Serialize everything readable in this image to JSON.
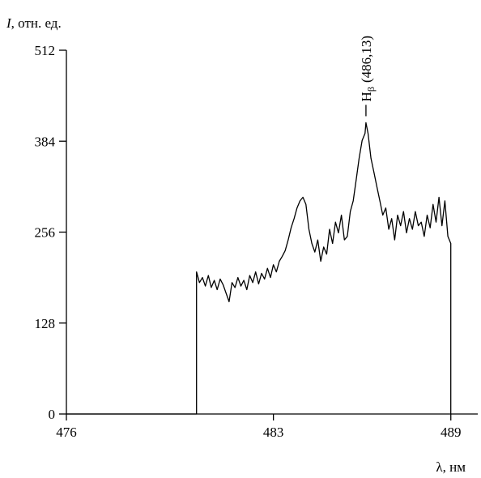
{
  "chart_data": {
    "type": "line",
    "ylabel_symbol": "I",
    "ylabel_unit": ", отн. ед.",
    "xlabel": "λ, нм",
    "annotation": {
      "symbol": "H",
      "subscript": "β",
      "value": 486.13,
      "label": "(486,13)"
    },
    "xlim": [
      476,
      489.5
    ],
    "xticks": [
      476,
      483,
      489
    ],
    "ylim": [
      0,
      512
    ],
    "yticks": [
      0,
      128,
      256,
      384,
      512
    ],
    "color": "#000000",
    "x": [
      476,
      480.4,
      480.4,
      480.5,
      480.6,
      480.7,
      480.8,
      480.9,
      481.0,
      481.1,
      481.2,
      481.3,
      481.4,
      481.5,
      481.6,
      481.7,
      481.8,
      481.9,
      482.0,
      482.1,
      482.2,
      482.3,
      482.4,
      482.5,
      482.6,
      482.7,
      482.8,
      482.9,
      483.0,
      483.1,
      483.2,
      483.3,
      483.4,
      483.5,
      483.6,
      483.7,
      483.8,
      483.9,
      484.0,
      484.1,
      484.2,
      484.3,
      484.4,
      484.5,
      484.6,
      484.7,
      484.8,
      484.9,
      485.0,
      485.1,
      485.2,
      485.3,
      485.4,
      485.5,
      485.6,
      485.7,
      485.8,
      485.9,
      486.0,
      486.1,
      486.13,
      486.2,
      486.3,
      486.4,
      486.5,
      486.6,
      486.7,
      486.8,
      486.9,
      487.0,
      487.1,
      487.2,
      487.3,
      487.4,
      487.5,
      487.6,
      487.7,
      487.8,
      487.9,
      488.0,
      488.1,
      488.2,
      488.3,
      488.4,
      488.5,
      488.6,
      488.7,
      488.8,
      488.9,
      489.0,
      489.0
    ],
    "values": [
      0,
      0,
      200,
      185,
      192,
      180,
      195,
      178,
      188,
      175,
      190,
      182,
      170,
      158,
      185,
      178,
      192,
      180,
      188,
      175,
      195,
      185,
      200,
      183,
      198,
      190,
      205,
      192,
      210,
      200,
      215,
      222,
      230,
      245,
      262,
      275,
      290,
      300,
      305,
      295,
      260,
      240,
      228,
      245,
      215,
      235,
      225,
      260,
      240,
      270,
      255,
      280,
      245,
      250,
      285,
      300,
      330,
      360,
      385,
      395,
      410,
      395,
      360,
      340,
      320,
      300,
      280,
      290,
      260,
      275,
      245,
      280,
      265,
      285,
      255,
      275,
      260,
      285,
      265,
      270,
      250,
      280,
      262,
      295,
      270,
      305,
      265,
      300,
      250,
      240,
      0
    ]
  }
}
